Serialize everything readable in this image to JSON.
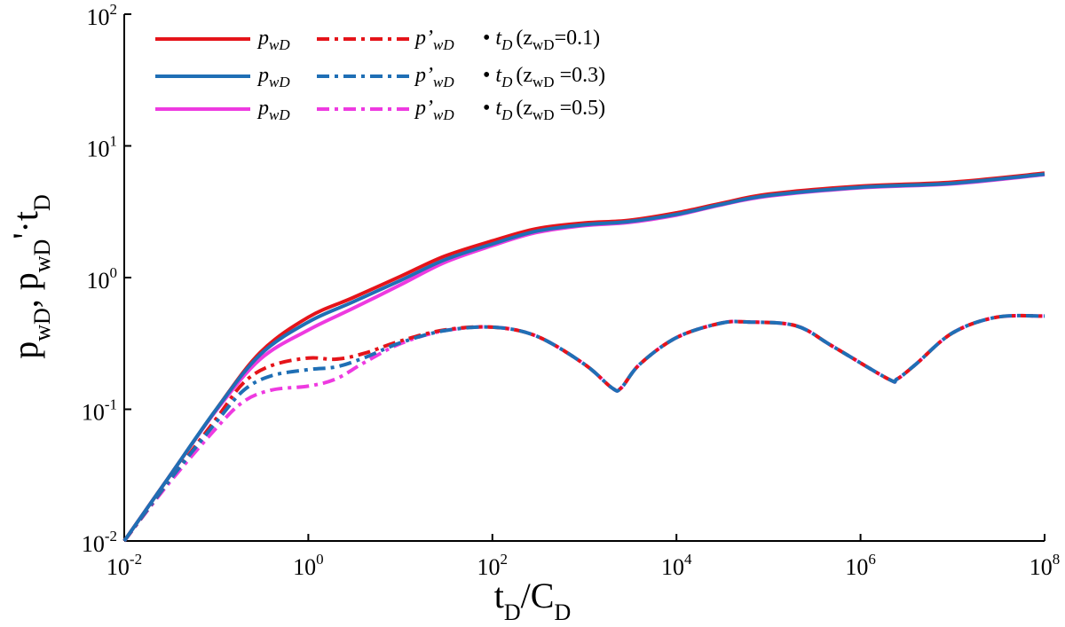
{
  "chart_data": {
    "type": "line",
    "x_scale": "log",
    "y_scale": "log",
    "xlim": [
      0.01,
      100000000
    ],
    "ylim": [
      0.01,
      100
    ],
    "x_ticks": [
      {
        "base": "10",
        "exp": "-2"
      },
      {
        "base": "10",
        "exp": "0"
      },
      {
        "base": "10",
        "exp": "2"
      },
      {
        "base": "10",
        "exp": "4"
      },
      {
        "base": "10",
        "exp": "6"
      },
      {
        "base": "10",
        "exp": "8"
      }
    ],
    "y_ticks": [
      {
        "base": "10",
        "exp": "-2"
      },
      {
        "base": "10",
        "exp": "-1"
      },
      {
        "base": "10",
        "exp": "0"
      },
      {
        "base": "10",
        "exp": "1"
      },
      {
        "base": "10",
        "exp": "2"
      }
    ],
    "xlabel": {
      "t": "t",
      "t_sub": "D",
      "slash": "/C",
      "c_sub": "D"
    },
    "ylabel": {
      "p1": "p",
      "sub1": "wD",
      "comma": ", p",
      "sub2": "wD",
      "prime": "'·t",
      "sub3": "D"
    },
    "legend": [
      {
        "p": "p",
        "p_sub": "wD",
        "dp": "p",
        "dp_prime": "’",
        "dp_sub": "wD",
        "dot": "•",
        "t": "t",
        "t_sub": "D",
        "paren_open": "(z",
        "z_sub": "wD",
        "val": "=0.1)"
      },
      {
        "p": "p",
        "p_sub": "wD",
        "dp": "p",
        "dp_prime": "’",
        "dp_sub": "wD",
        "dot": "•",
        "t": "t",
        "t_sub": "D",
        "paren_open": "(z",
        "z_sub": "wD",
        "val": " =0.3)"
      },
      {
        "p": "p",
        "p_sub": "wD",
        "dp": "p",
        "dp_prime": "’",
        "dp_sub": "wD",
        "dot": "•",
        "t": "t",
        "t_sub": "D",
        "paren_open": "(z",
        "z_sub": "wD",
        "val": " =0.5)"
      }
    ],
    "colors": [
      "#e5141a",
      "#1f6fb5",
      "#ee3ae0"
    ],
    "series": [
      {
        "kind": "pressure",
        "z": 0.1,
        "x": [
          0.01,
          0.03,
          0.1,
          0.3,
          1,
          3,
          10,
          30,
          100,
          300,
          1000,
          3000,
          10000,
          30000,
          100000,
          1000000,
          10000000,
          100000000
        ],
        "y": [
          0.01,
          0.03,
          0.1,
          0.27,
          0.5,
          0.7,
          1.02,
          1.45,
          1.9,
          2.35,
          2.6,
          2.72,
          3.1,
          3.65,
          4.3,
          4.95,
          5.3,
          6.2
        ]
      },
      {
        "kind": "derivative",
        "z": 0.1,
        "x": [
          0.01,
          0.03,
          0.1,
          0.2,
          0.4,
          1,
          2,
          4,
          10,
          30,
          100,
          300,
          1000,
          2000,
          2500,
          4000,
          10000,
          30000,
          60000,
          200000,
          500000,
          2000000,
          2500000,
          4000000,
          10000000,
          30000000,
          100000000
        ],
        "y": [
          0.01,
          0.028,
          0.085,
          0.16,
          0.215,
          0.245,
          0.24,
          0.265,
          0.33,
          0.4,
          0.42,
          0.36,
          0.22,
          0.145,
          0.145,
          0.22,
          0.35,
          0.45,
          0.46,
          0.43,
          0.3,
          0.17,
          0.17,
          0.22,
          0.38,
          0.5,
          0.51
        ]
      },
      {
        "kind": "pressure",
        "z": 0.3,
        "x": [
          0.01,
          0.03,
          0.1,
          0.3,
          1,
          3,
          10,
          30,
          100,
          300,
          1000,
          3000,
          10000,
          30000,
          100000,
          1000000,
          10000000,
          100000000
        ],
        "y": [
          0.01,
          0.03,
          0.1,
          0.26,
          0.46,
          0.65,
          0.95,
          1.36,
          1.8,
          2.25,
          2.52,
          2.66,
          3.02,
          3.58,
          4.2,
          4.85,
          5.2,
          6.1
        ]
      },
      {
        "kind": "derivative",
        "z": 0.3,
        "x": [
          0.01,
          0.03,
          0.1,
          0.2,
          0.4,
          1,
          2,
          4,
          10,
          30,
          100,
          300,
          1000,
          2000,
          2500,
          4000,
          10000,
          30000,
          60000,
          200000,
          500000,
          2000000,
          2500000,
          4000000,
          10000000,
          30000000,
          100000000
        ],
        "y": [
          0.01,
          0.028,
          0.08,
          0.14,
          0.18,
          0.2,
          0.21,
          0.245,
          0.32,
          0.395,
          0.42,
          0.36,
          0.22,
          0.145,
          0.145,
          0.22,
          0.35,
          0.45,
          0.46,
          0.43,
          0.3,
          0.17,
          0.17,
          0.22,
          0.38,
          0.5,
          0.51
        ]
      },
      {
        "kind": "pressure",
        "z": 0.5,
        "x": [
          0.01,
          0.03,
          0.1,
          0.3,
          1,
          3,
          10,
          30,
          100,
          300,
          1000,
          3000,
          10000,
          30000,
          100000,
          1000000,
          10000000,
          100000000
        ],
        "y": [
          0.01,
          0.03,
          0.098,
          0.24,
          0.4,
          0.58,
          0.88,
          1.3,
          1.75,
          2.2,
          2.48,
          2.62,
          2.98,
          3.55,
          4.15,
          4.8,
          5.15,
          6.05
        ]
      },
      {
        "kind": "derivative",
        "z": 0.5,
        "x": [
          0.01,
          0.03,
          0.1,
          0.2,
          0.4,
          1,
          2,
          4,
          10,
          30,
          100,
          300,
          1000,
          2000,
          2500,
          4000,
          10000,
          30000,
          60000,
          200000,
          500000,
          2000000,
          2500000,
          4000000,
          10000000,
          30000000,
          100000000
        ],
        "y": [
          0.01,
          0.027,
          0.072,
          0.115,
          0.14,
          0.15,
          0.17,
          0.225,
          0.315,
          0.395,
          0.42,
          0.36,
          0.22,
          0.145,
          0.145,
          0.22,
          0.35,
          0.45,
          0.46,
          0.43,
          0.3,
          0.17,
          0.17,
          0.22,
          0.38,
          0.5,
          0.51
        ]
      }
    ]
  }
}
